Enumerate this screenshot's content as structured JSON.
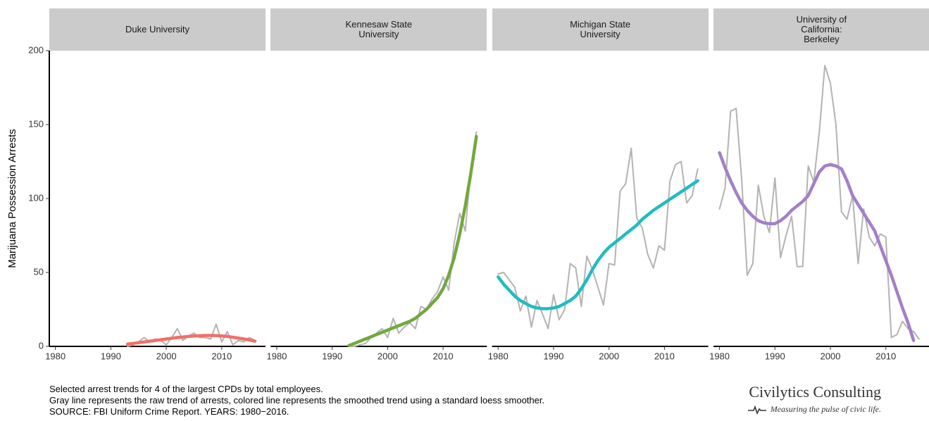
{
  "chart_data": [
    {
      "type": "line",
      "title": "Duke University",
      "ylabel": "Marijuana Possession Arrests",
      "x": [
        1993,
        1994,
        1995,
        1996,
        1997,
        1998,
        1999,
        2000,
        2001,
        2002,
        2003,
        2004,
        2005,
        2006,
        2007,
        2008,
        2009,
        2010,
        2011,
        2012,
        2013,
        2014,
        2015,
        2016
      ],
      "series": [
        {
          "color": "#b3b3b3",
          "values": [
            0,
            1,
            3,
            6,
            3,
            5,
            4,
            1,
            6,
            12,
            4,
            7,
            9,
            6,
            6,
            5,
            15,
            3,
            10,
            1,
            4,
            3,
            6,
            4
          ]
        },
        {
          "color": "#f07068",
          "values": [
            1.5,
            2,
            2.5,
            3,
            3.5,
            4,
            4.5,
            5,
            5.5,
            6,
            6.3,
            6.7,
            7,
            7.2,
            7.4,
            7.4,
            7.3,
            7,
            6.7,
            6.2,
            5.6,
            5,
            4.3,
            3.5
          ]
        }
      ],
      "xlim": [
        1978.9,
        2017.9
      ],
      "xticks": [
        1980,
        1990,
        2000,
        2010
      ],
      "ylim": [
        0,
        200
      ],
      "yticks": [
        0,
        50,
        100,
        150,
        200
      ]
    },
    {
      "type": "line",
      "title": "Kennesaw State\nUniversity",
      "x": [
        1993,
        1994,
        1995,
        1996,
        1997,
        1998,
        1999,
        2000,
        2001,
        2002,
        2003,
        2004,
        2005,
        2006,
        2007,
        2008,
        2009,
        2010,
        2011,
        2012,
        2013,
        2014,
        2015,
        2016
      ],
      "series": [
        {
          "color": "#b3b3b3",
          "values": [
            0,
            0,
            1,
            2,
            6,
            9,
            12,
            6,
            19,
            9,
            13,
            16,
            12,
            27,
            25,
            32,
            37,
            47,
            38,
            70,
            90,
            78,
            120,
            145
          ]
        },
        {
          "color": "#72a83d",
          "values": [
            0.5,
            2,
            3.5,
            5,
            6.5,
            8,
            9.5,
            11,
            12.5,
            14,
            15.5,
            17,
            19,
            22,
            25,
            29,
            33,
            39,
            48,
            60,
            76,
            95,
            117,
            142
          ]
        }
      ],
      "xlim": [
        1978.9,
        2017.9
      ],
      "xticks": [
        1980,
        1990,
        2000,
        2010
      ],
      "ylim": [
        0,
        200
      ]
    },
    {
      "type": "line",
      "title": "Michigan State\nUniversity",
      "x": [
        1980,
        1981,
        1982,
        1983,
        1984,
        1985,
        1986,
        1987,
        1988,
        1989,
        1990,
        1991,
        1992,
        1993,
        1994,
        1995,
        1996,
        1997,
        1998,
        1999,
        2000,
        2001,
        2002,
        2003,
        2004,
        2005,
        2006,
        2007,
        2008,
        2009,
        2010,
        2011,
        2012,
        2013,
        2014,
        2015,
        2016
      ],
      "series": [
        {
          "color": "#b3b3b3",
          "values": [
            49,
            50,
            45,
            40,
            24,
            34,
            13,
            31,
            22,
            12,
            35,
            18,
            25,
            56,
            53,
            27,
            61,
            52,
            40,
            28,
            56,
            55,
            105,
            110,
            134,
            87,
            80,
            62,
            53,
            68,
            65,
            112,
            123,
            125,
            97,
            102,
            120
          ]
        },
        {
          "color": "#1fbcc1",
          "values": [
            47,
            42,
            38,
            34,
            31,
            29,
            27,
            26,
            25.5,
            25.5,
            26,
            27,
            29,
            31,
            34,
            39,
            45,
            52,
            58,
            63,
            67,
            70,
            73,
            76,
            79,
            82,
            86,
            89,
            92,
            94.5,
            97,
            99.5,
            102,
            104.5,
            107,
            109.5,
            112
          ]
        }
      ],
      "xlim": [
        1978.9,
        2017.9
      ],
      "xticks": [
        1980,
        1990,
        2000,
        2010
      ],
      "ylim": [
        0,
        200
      ]
    },
    {
      "type": "line",
      "title": "University of\nCalifornia:\nBerkeley",
      "x": [
        1980,
        1981,
        1982,
        1983,
        1984,
        1985,
        1986,
        1987,
        1988,
        1989,
        1990,
        1991,
        1992,
        1993,
        1994,
        1995,
        1996,
        1997,
        1998,
        1999,
        2000,
        2001,
        2002,
        2003,
        2004,
        2005,
        2006,
        2007,
        2008,
        2009,
        2010,
        2011,
        2012,
        2013,
        2014,
        2015,
        2016
      ],
      "series": [
        {
          "color": "#b3b3b3",
          "values": [
            93,
            107,
            159,
            161,
            113,
            48,
            56,
            109,
            88,
            77,
            114,
            60,
            75,
            88,
            54,
            54,
            122,
            111,
            145,
            190,
            178,
            150,
            91,
            86,
            102,
            56,
            93,
            74,
            68,
            76,
            74,
            6,
            8,
            17,
            12,
            10,
            5
          ]
        },
        {
          "color": "#a47fc6",
          "values": [
            131,
            121,
            112,
            104,
            97,
            92,
            88,
            85,
            83.5,
            83,
            83,
            85,
            88,
            92,
            95,
            98,
            102,
            110,
            118,
            122,
            123,
            122,
            120,
            112,
            102,
            96,
            90,
            84,
            78,
            68,
            58,
            48,
            37,
            26,
            16,
            4,
            null
          ]
        }
      ],
      "xlim": [
        1978.9,
        2017.9
      ],
      "xticks": [
        1980,
        1990,
        2000,
        2010
      ],
      "ylim": [
        0,
        200
      ]
    }
  ],
  "caption": [
    "Selected arrest trends for 4 of the largest CPDs by total employees.",
    "Gray line represents the raw trend of arrests, colored line represents the smoothed trend using a standard loess smoother.",
    "SOURCE:  FBI Uniform Crime Report. YEARS: 1980−2016."
  ],
  "brand": "Civilytics Consulting",
  "tagline": "Measuring the pulse of civic life."
}
